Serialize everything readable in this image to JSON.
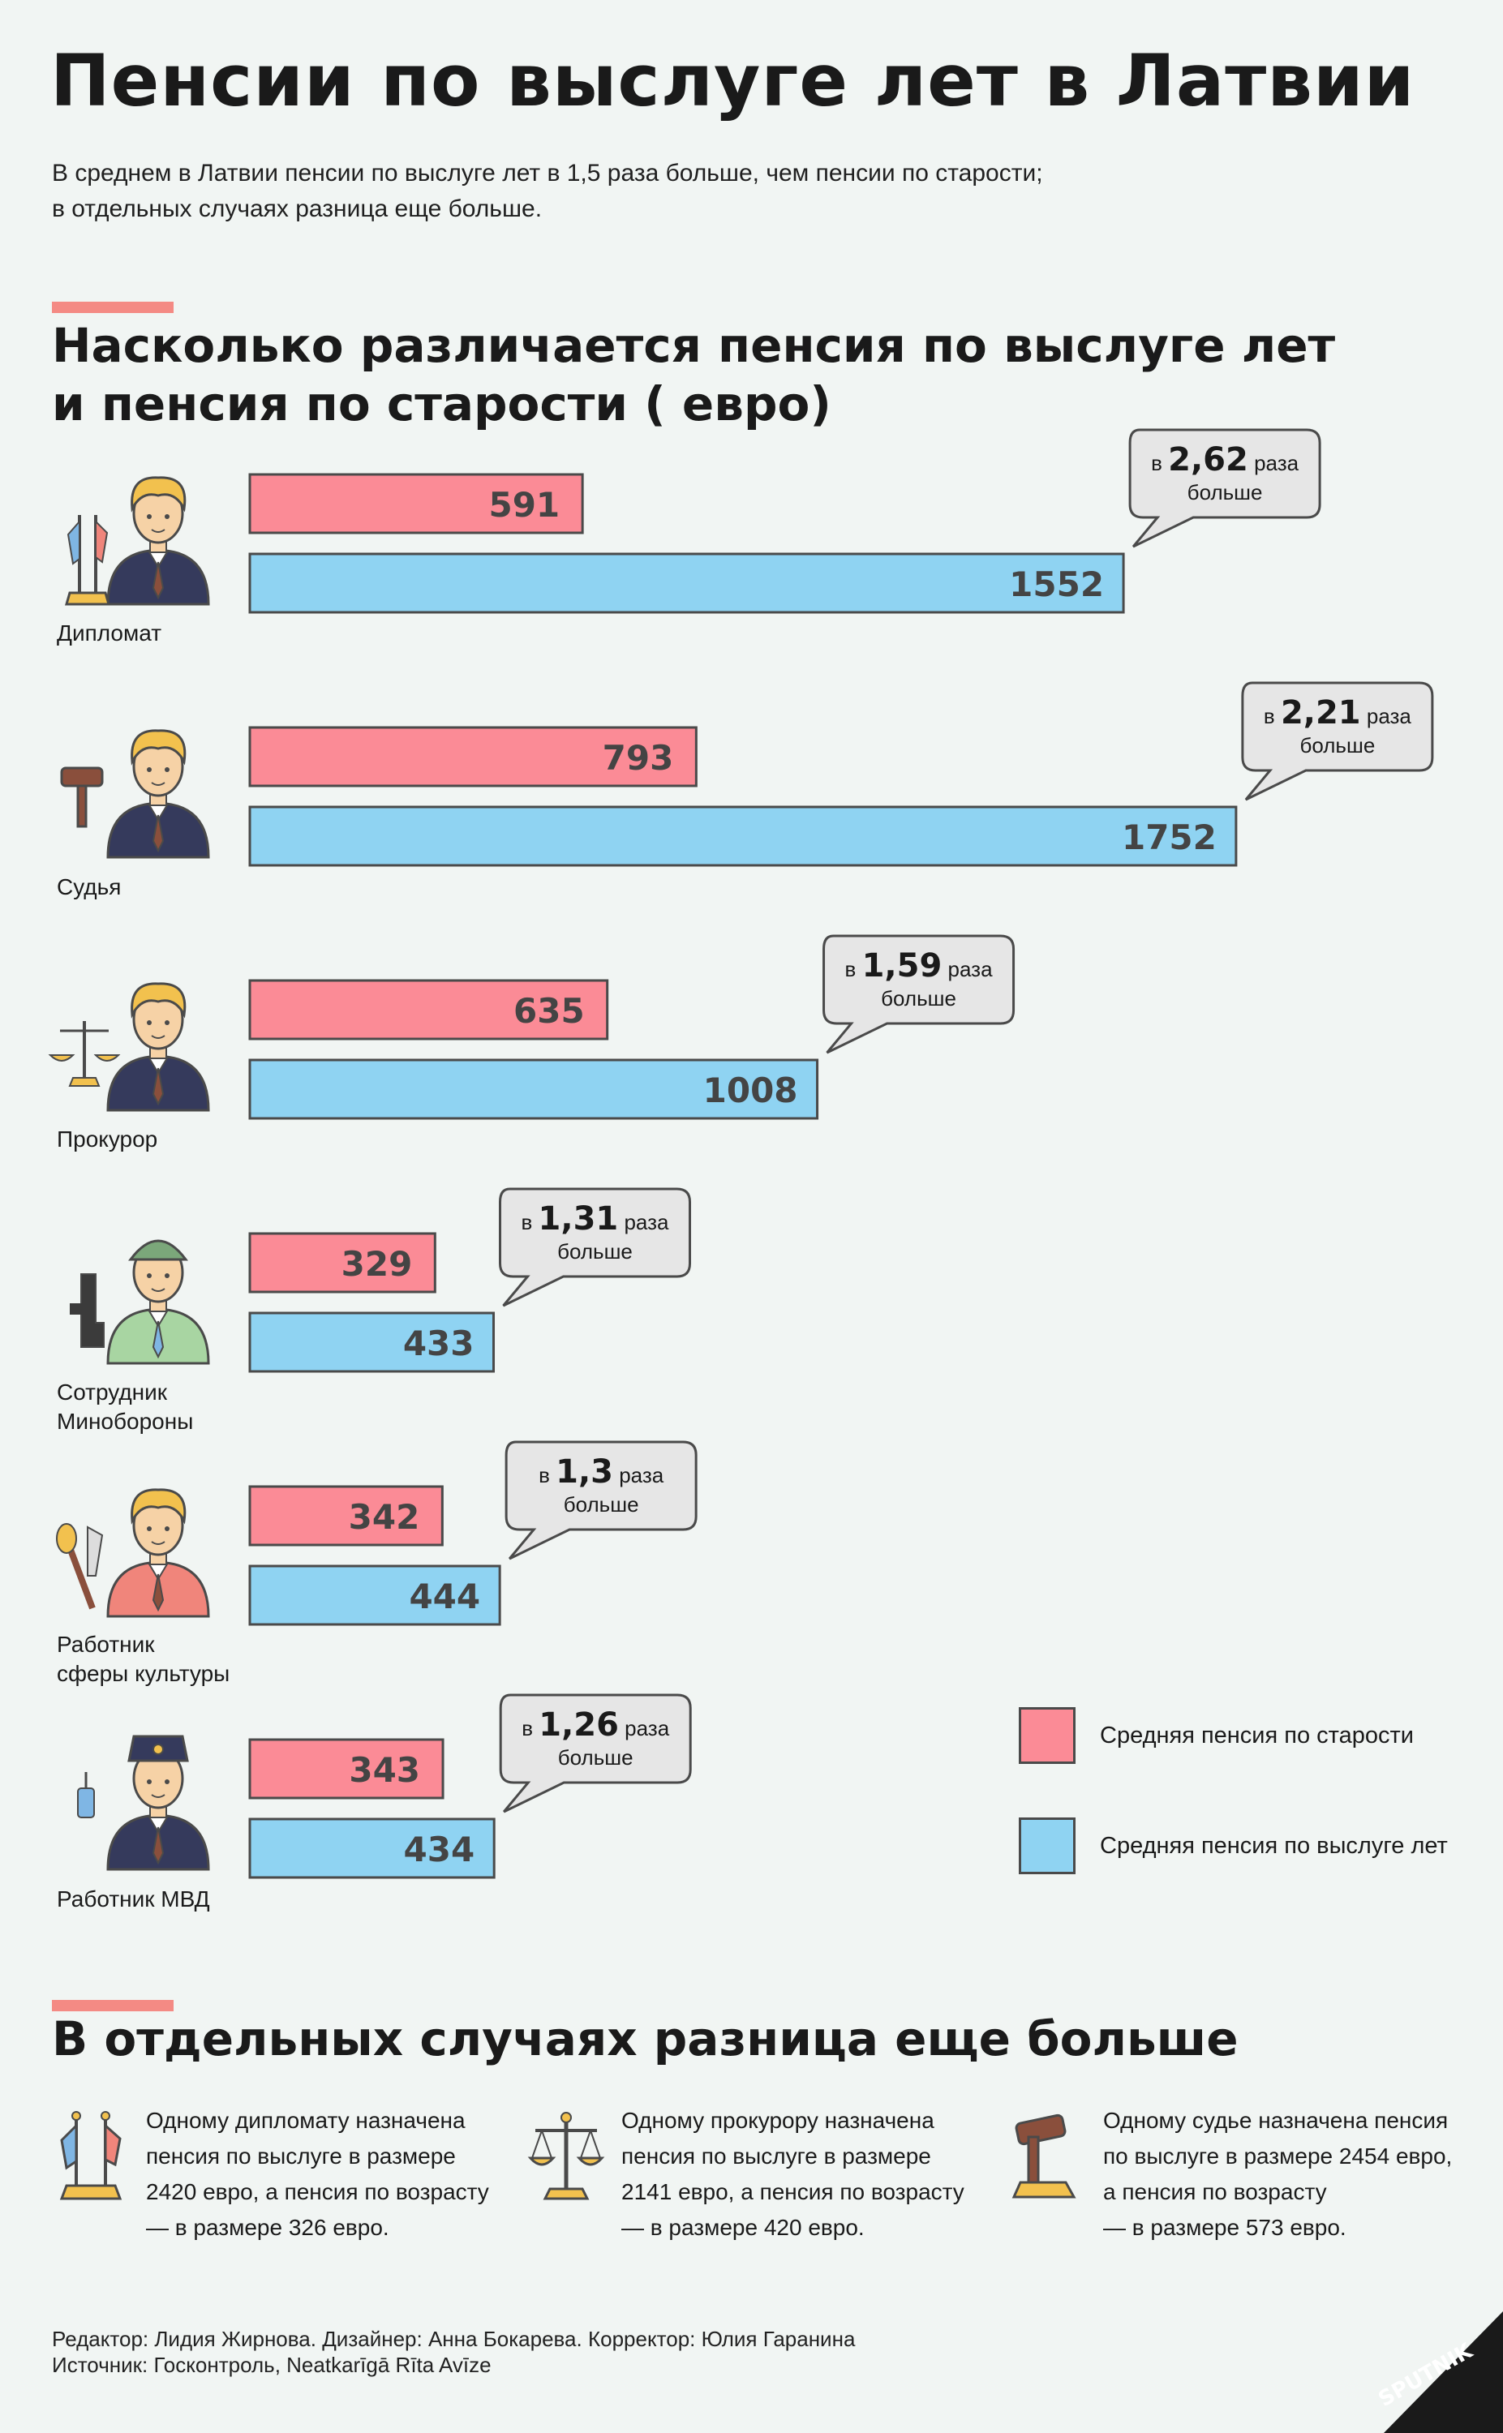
{
  "title": "Пенсии по выслуге лет в Латвии",
  "subtitle": [
    "В среднем в Латвии пенсии по выслуге лет в 1,5 раза больше, чем пенсии по старости;",
    "в отдельных случаях разница еще больше."
  ],
  "chart_title": [
    "Насколько различается пенсия по выслуге лет",
    "и пенсия по старости ( евро)"
  ],
  "chart_data": {
    "type": "bar",
    "title": "Насколько различается пенсия по выслуге лет и пенсия по старости ( евро)",
    "categories": [
      "Дипломат",
      "Судья",
      "Прокурор",
      "Сотрудник Минобороны",
      "Работник сферы культуры",
      "Работник МВД"
    ],
    "category_lines": [
      [
        "Дипломат"
      ],
      [
        "Судья"
      ],
      [
        "Прокурор"
      ],
      [
        "Сотрудник",
        "Минобороны"
      ],
      [
        "Работник",
        "сферы культуры"
      ],
      [
        "Работник МВД"
      ]
    ],
    "series": [
      {
        "name": "Средняя пенсия по старости",
        "color": "#fb8b96",
        "values": [
          591,
          793,
          635,
          329,
          342,
          343
        ]
      },
      {
        "name": "Средняя пенсия по выслуге лет",
        "color": "#8fd3f2",
        "values": [
          1552,
          1752,
          1008,
          433,
          444,
          434
        ]
      }
    ],
    "ratios": [
      "2,62",
      "2,21",
      "1,59",
      "1,31",
      "1,3",
      "1,26"
    ],
    "ratio_prefix": "в",
    "ratio_suffix": "раза",
    "ratio_line2": "больше",
    "orientation": "horizontal",
    "legend_position": "bottom-right",
    "grid": false
  },
  "legend": [
    {
      "label": "Средняя пенсия по старости",
      "color": "#fb8b96"
    },
    {
      "label": "Средняя пенсия по выслуге лет",
      "color": "#8fd3f2"
    }
  ],
  "section2_title": "В отдельных случаях разница еще больше",
  "cases": [
    {
      "icon": "flags-icon",
      "lines": [
        "Одному дипломату назначена",
        "пенсия по выслуге в размере",
        "2420 евро, а пенсия по возрасту",
        "— в размере  326 евро."
      ]
    },
    {
      "icon": "scales-icon",
      "lines": [
        "Одному прокурору назначена",
        "пенсия по выслуге в размере",
        "2141 евро, а пенсия по возрасту",
        "— в размере 420 евро."
      ]
    },
    {
      "icon": "gavel-icon",
      "lines": [
        "Одному судье назначена пенсия",
        "по выслуге в размере 2454 евро,",
        "а пенсия по возрасту",
        "— в размере 573 евро."
      ]
    }
  ],
  "footer": [
    "Редактор: Лидия Жирнова. Дизайнер: Анна Бокарева. Корректор: Юлия Гаранина",
    "Источник: Госконтроль, Neatkarīgā Rīta Avīze"
  ],
  "logo_text": "SPUTNIK",
  "colors": {
    "accent": "#f48a84",
    "background": "#f1f5f3"
  }
}
